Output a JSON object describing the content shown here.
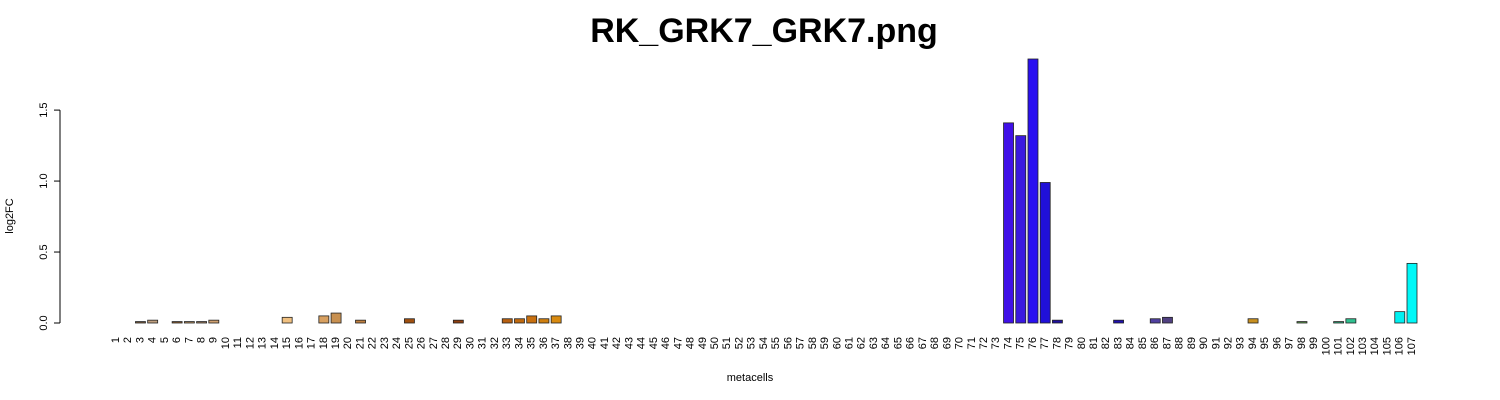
{
  "chart_data": {
    "type": "bar",
    "title": "RK_GRK7_GRK7.png",
    "x_label": "metacells",
    "y_label": "log2FC",
    "categories": [
      "1",
      "2",
      "3",
      "4",
      "5",
      "6",
      "7",
      "8",
      "9",
      "10",
      "11",
      "12",
      "13",
      "14",
      "15",
      "16",
      "17",
      "18",
      "19",
      "20",
      "21",
      "22",
      "23",
      "24",
      "25",
      "26",
      "27",
      "28",
      "29",
      "30",
      "31",
      "32",
      "33",
      "34",
      "35",
      "36",
      "37",
      "38",
      "39",
      "40",
      "41",
      "42",
      "43",
      "44",
      "45",
      "46",
      "47",
      "48",
      "49",
      "50",
      "51",
      "52",
      "53",
      "54",
      "55",
      "56",
      "57",
      "58",
      "59",
      "60",
      "61",
      "62",
      "63",
      "64",
      "65",
      "66",
      "67",
      "68",
      "69",
      "70",
      "71",
      "72",
      "73",
      "74",
      "75",
      "76",
      "77",
      "78",
      "79",
      "80",
      "81",
      "82",
      "83",
      "84",
      "85",
      "86",
      "87",
      "88",
      "89",
      "90",
      "91",
      "92",
      "93",
      "94",
      "95",
      "96",
      "97",
      "98",
      "99",
      "100",
      "101",
      "102",
      "103",
      "104",
      "105",
      "106",
      "107"
    ],
    "values": [
      0,
      0,
      0.01,
      0.02,
      0,
      0.01,
      0.01,
      0.01,
      0.02,
      0,
      0,
      0,
      0,
      0,
      0.04,
      0,
      0,
      0.05,
      0.07,
      0,
      0.02,
      0,
      0,
      0,
      0.03,
      0,
      0,
      0,
      0.02,
      0,
      0,
      0,
      0.03,
      0.03,
      0.05,
      0.03,
      0.05,
      0,
      0,
      0,
      0,
      0,
      0,
      0,
      0,
      0,
      0,
      0,
      0,
      0,
      0,
      0,
      0,
      0,
      0,
      0,
      0,
      0,
      0,
      0,
      0,
      0,
      0,
      0,
      0,
      0,
      0,
      0,
      0,
      0,
      0,
      0,
      0,
      1.41,
      1.32,
      1.86,
      0.99,
      0.02,
      0,
      0,
      0,
      0,
      0.02,
      0,
      0,
      0.03,
      0.04,
      0,
      0,
      0,
      0,
      0,
      0,
      0.03,
      0,
      0,
      0,
      0.01,
      0,
      0,
      0.01,
      0.03,
      0,
      0,
      0,
      0.08,
      0.42
    ],
    "colors": [
      "#c8a070",
      "#b08050",
      "#806040",
      "#c0a080",
      "#a07850",
      "#906030",
      "#b89060",
      "#a08060",
      "#d0a070",
      "#b08860",
      "#a07040",
      "#c09060",
      "#906840",
      "#b89070",
      "#f0c080",
      "#e0b080",
      "#d09860",
      "#d8a060",
      "#c89050",
      "#b07030",
      "#c08040",
      "#a06020",
      "#b07840",
      "#906030",
      "#a05010",
      "#b06020",
      "#c07020",
      "#a05a20",
      "#904010",
      "#b06010",
      "#c07010",
      "#d08020",
      "#b86010",
      "#c06a10",
      "#c87010",
      "#d08010",
      "#d88a10",
      "#9a7a5a",
      "#8a6a8a",
      "#6a5a9a",
      "#5a4aaa",
      "#9a7a5a",
      "#8a6a8a",
      "#6a5a9a",
      "#5a4aaa",
      "#9a7a5a",
      "#8a6a8a",
      "#6a5a9a",
      "#5a4aaa",
      "#9a7a5a",
      "#8a6a8a",
      "#6a5a9a",
      "#5a4aaa",
      "#9a7a5a",
      "#8a6a8a",
      "#6a5a9a",
      "#5a4aaa",
      "#9a7a5a",
      "#8a6a8a",
      "#6a5a9a",
      "#5a4aaa",
      "#9a7a5a",
      "#8a6a8a",
      "#6a5a9a",
      "#5a4aaa",
      "#9a7a5a",
      "#8a6a8a",
      "#6a5a9a",
      "#5a4aaa",
      "#9a7a5a",
      "#8a6a8a",
      "#6a5a9a",
      "#5a4aaa",
      "#4010e8",
      "#3a18e0",
      "#2a10f0",
      "#2010d8",
      "#2010a0",
      "#3020a0",
      "#302080",
      "#403090",
      "#2818a0",
      "#2010b0",
      "#403080",
      "#504090",
      "#5040a0",
      "#504080",
      "#606060",
      "#707040",
      "#806020",
      "#906830",
      "#a07020",
      "#b08020",
      "#c89020",
      "#a09040",
      "#809050",
      "#70a050",
      "#60a050",
      "#50a060",
      "#40b070",
      "#30b080",
      "#30c090",
      "#20d0b0",
      "#20e0d0",
      "#10e8e0",
      "#00f0f0",
      "#00f8f8"
    ],
    "ylim": [
      0,
      1.86
    ],
    "yticks": [
      {
        "value": 0,
        "label": "0.0"
      },
      0.5,
      {
        "value": 1,
        "label": "1.0"
      },
      1.5
    ]
  }
}
